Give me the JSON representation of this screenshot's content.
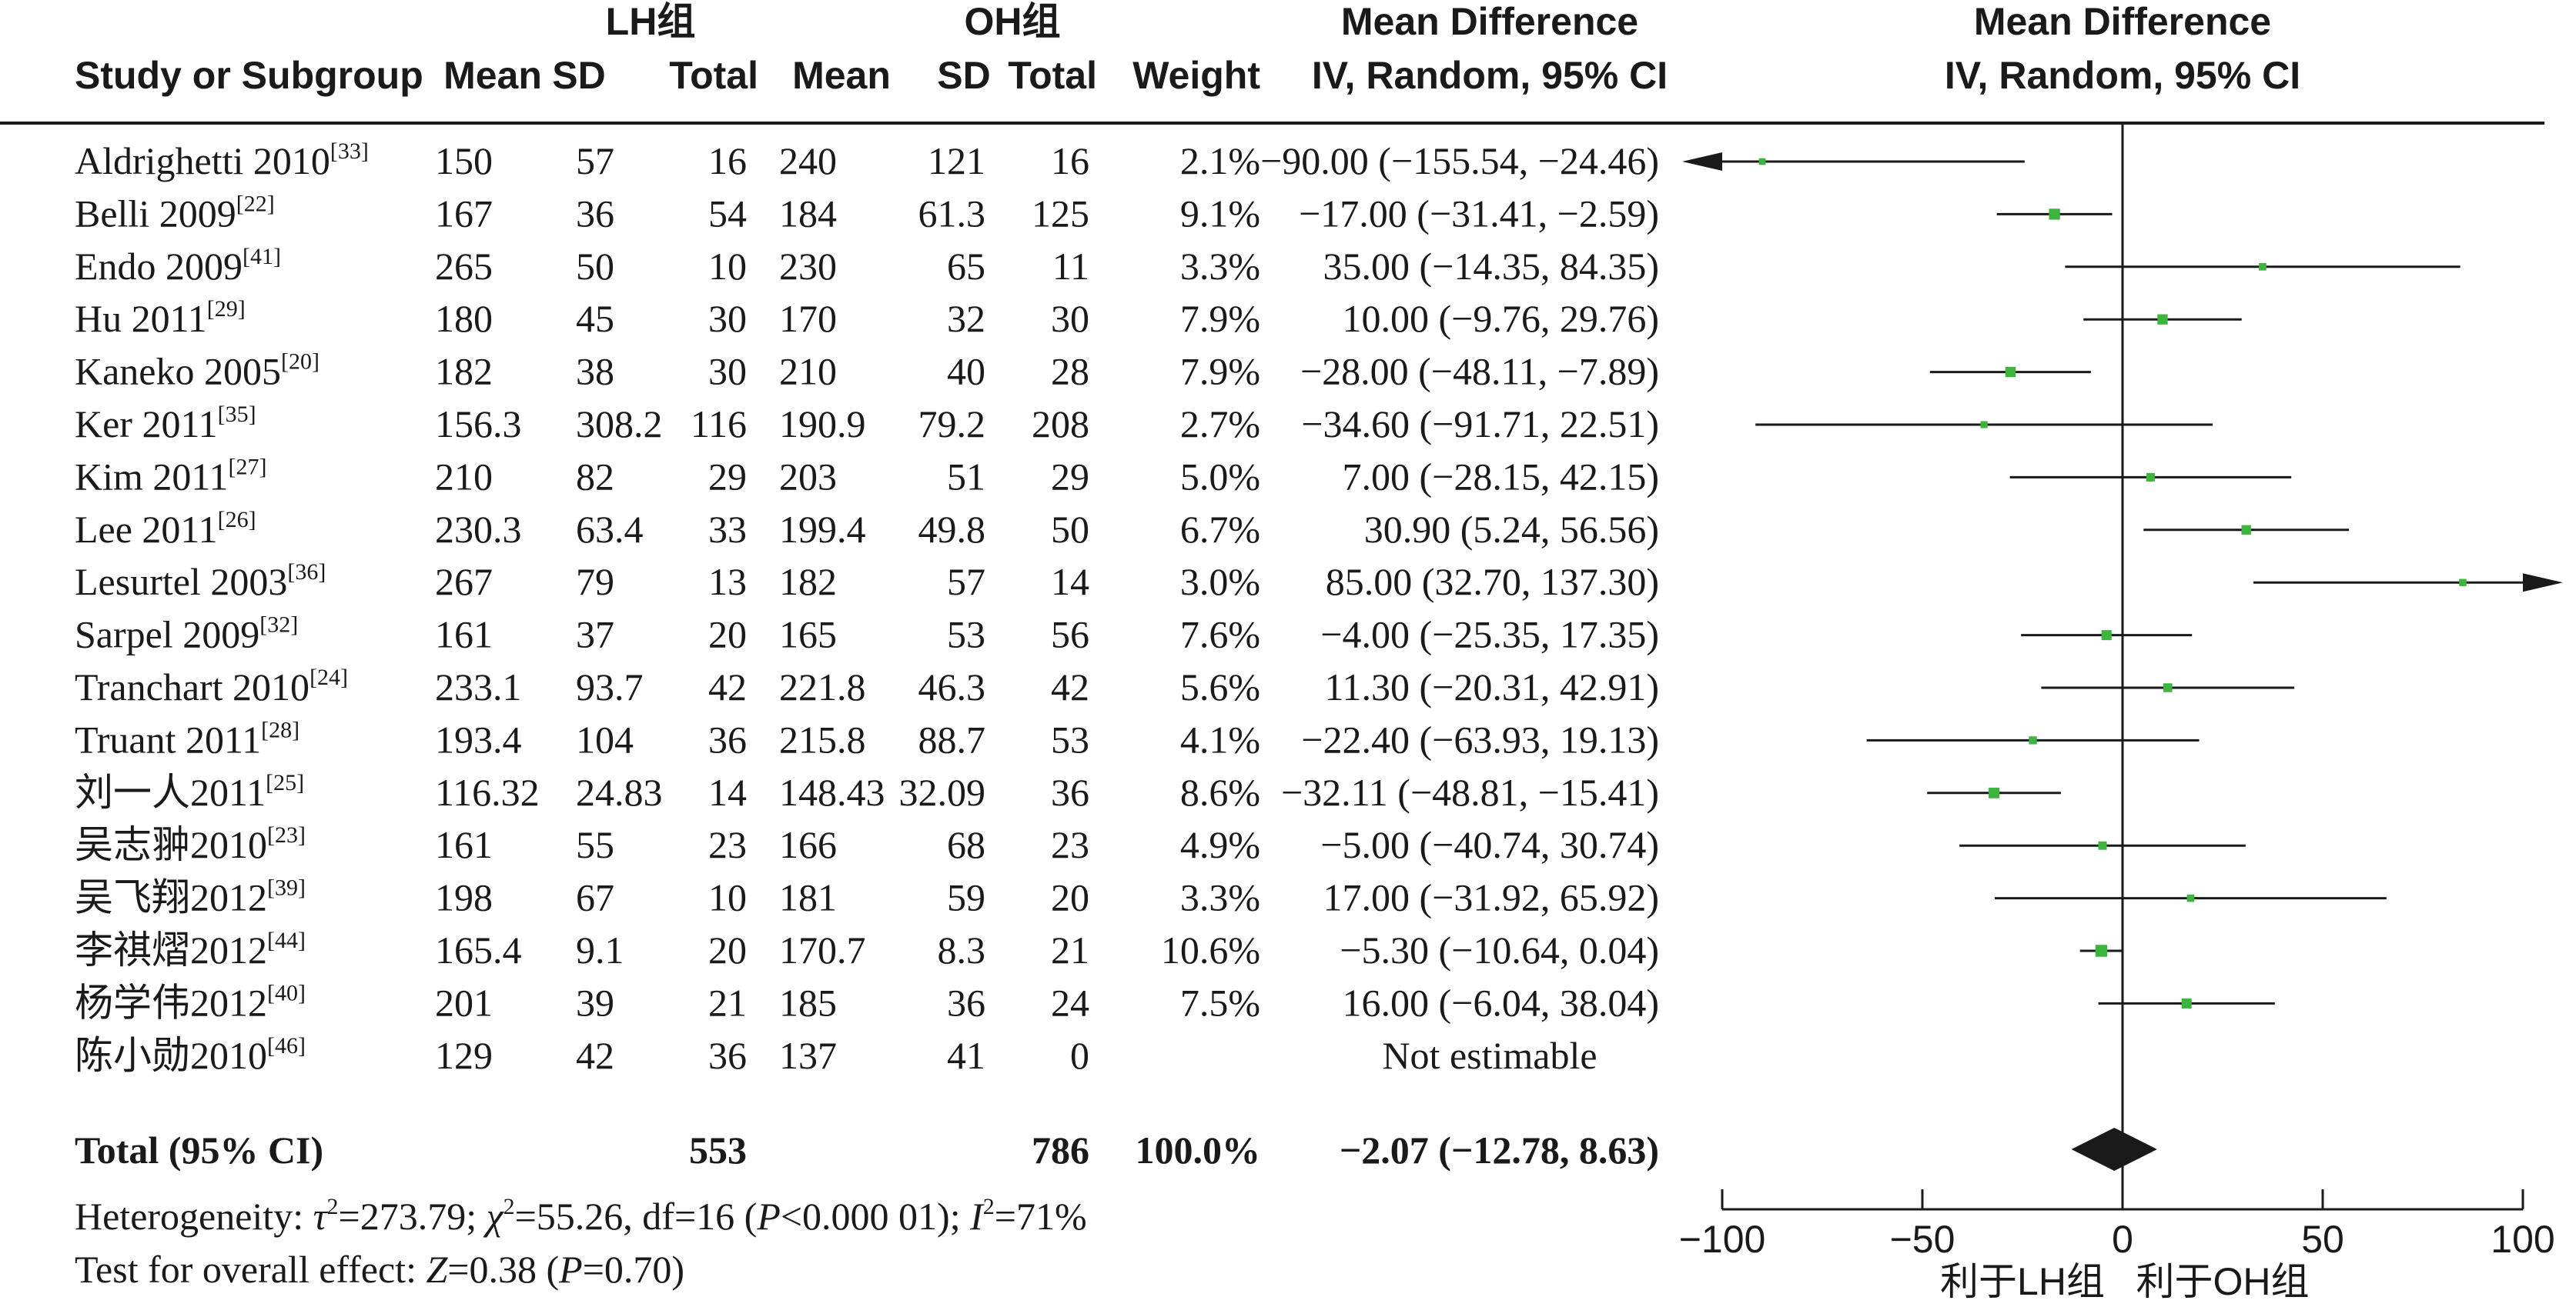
{
  "chart_data": {
    "type": "forest",
    "group_labels": {
      "experimental": "LH组",
      "control": "OH组"
    },
    "header": {
      "study": "Study or Subgroup",
      "mean": "Mean",
      "sd": "SD",
      "total": "Total",
      "weight": "Weight",
      "effect_title": "Mean Difference",
      "effect_method": "IV, Random, 95% CI"
    },
    "studies": [
      {
        "name": "Aldrighetti 2010",
        "ref": "[33]",
        "lh_mean": "150",
        "lh_sd": "57",
        "lh_total": "16",
        "oh_mean": "240",
        "oh_sd": "121",
        "oh_total": "16",
        "weight": "2.1%",
        "ci_text": "−90.00 (−155.54, −24.46)",
        "md": -90.0,
        "lower": -155.54,
        "upper": -24.46
      },
      {
        "name": "Belli 2009",
        "ref": "[22]",
        "lh_mean": "167",
        "lh_sd": "36",
        "lh_total": "54",
        "oh_mean": "184",
        "oh_sd": "61.3",
        "oh_total": "125",
        "weight": "9.1%",
        "ci_text": "−17.00 (−31.41, −2.59)",
        "md": -17.0,
        "lower": -31.41,
        "upper": -2.59
      },
      {
        "name": "Endo 2009",
        "ref": "[41]",
        "lh_mean": "265",
        "lh_sd": "50",
        "lh_total": "10",
        "oh_mean": "230",
        "oh_sd": "65",
        "oh_total": "11",
        "weight": "3.3%",
        "ci_text": "35.00 (−14.35, 84.35)",
        "md": 35.0,
        "lower": -14.35,
        "upper": 84.35
      },
      {
        "name": "Hu 2011",
        "ref": "[29]",
        "lh_mean": "180",
        "lh_sd": "45",
        "lh_total": "30",
        "oh_mean": "170",
        "oh_sd": "32",
        "oh_total": "30",
        "weight": "7.9%",
        "ci_text": "10.00 (−9.76, 29.76)",
        "md": 10.0,
        "lower": -9.76,
        "upper": 29.76
      },
      {
        "name": "Kaneko 2005",
        "ref": "[20]",
        "lh_mean": "182",
        "lh_sd": "38",
        "lh_total": "30",
        "oh_mean": "210",
        "oh_sd": "40",
        "oh_total": "28",
        "weight": "7.9%",
        "ci_text": "−28.00 (−48.11, −7.89)",
        "md": -28.0,
        "lower": -48.11,
        "upper": -7.89
      },
      {
        "name": "Ker 2011",
        "ref": "[35]",
        "lh_mean": "156.3",
        "lh_sd": "308.2",
        "lh_total": "116",
        "oh_mean": "190.9",
        "oh_sd": "79.2",
        "oh_total": "208",
        "weight": "2.7%",
        "ci_text": "−34.60 (−91.71, 22.51)",
        "md": -34.6,
        "lower": -91.71,
        "upper": 22.51
      },
      {
        "name": "Kim 2011",
        "ref": "[27]",
        "lh_mean": "210",
        "lh_sd": "82",
        "lh_total": "29",
        "oh_mean": "203",
        "oh_sd": "51",
        "oh_total": "29",
        "weight": "5.0%",
        "ci_text": "7.00 (−28.15, 42.15)",
        "md": 7.0,
        "lower": -28.15,
        "upper": 42.15
      },
      {
        "name": "Lee 2011",
        "ref": "[26]",
        "lh_mean": "230.3",
        "lh_sd": "63.4",
        "lh_total": "33",
        "oh_mean": "199.4",
        "oh_sd": "49.8",
        "oh_total": "50",
        "weight": "6.7%",
        "ci_text": "30.90 (5.24, 56.56)",
        "md": 30.9,
        "lower": 5.24,
        "upper": 56.56
      },
      {
        "name": "Lesurtel 2003",
        "ref": "[36]",
        "lh_mean": "267",
        "lh_sd": "79",
        "lh_total": "13",
        "oh_mean": "182",
        "oh_sd": "57",
        "oh_total": "14",
        "weight": "3.0%",
        "ci_text": "85.00 (32.70, 137.30)",
        "md": 85.0,
        "lower": 32.7,
        "upper": 137.3
      },
      {
        "name": "Sarpel 2009",
        "ref": "[32]",
        "lh_mean": "161",
        "lh_sd": "37",
        "lh_total": "20",
        "oh_mean": "165",
        "oh_sd": "53",
        "oh_total": "56",
        "weight": "7.6%",
        "ci_text": "−4.00 (−25.35, 17.35)",
        "md": -4.0,
        "lower": -25.35,
        "upper": 17.35
      },
      {
        "name": "Tranchart 2010",
        "ref": "[24]",
        "lh_mean": "233.1",
        "lh_sd": "93.7",
        "lh_total": "42",
        "oh_mean": "221.8",
        "oh_sd": "46.3",
        "oh_total": "42",
        "weight": "5.6%",
        "ci_text": "11.30 (−20.31, 42.91)",
        "md": 11.3,
        "lower": -20.31,
        "upper": 42.91
      },
      {
        "name": "Truant 2011",
        "ref": "[28]",
        "lh_mean": "193.4",
        "lh_sd": "104",
        "lh_total": "36",
        "oh_mean": "215.8",
        "oh_sd": "88.7",
        "oh_total": "53",
        "weight": "4.1%",
        "ci_text": "−22.40 (−63.93, 19.13)",
        "md": -22.4,
        "lower": -63.93,
        "upper": 19.13
      },
      {
        "name": "刘一人2011",
        "ref": "[25]",
        "lh_mean": "116.32",
        "lh_sd": "24.83",
        "lh_total": "14",
        "oh_mean": "148.43",
        "oh_sd": "32.09",
        "oh_total": "36",
        "weight": "8.6%",
        "ci_text": "−32.11 (−48.81, −15.41)",
        "md": -32.11,
        "lower": -48.81,
        "upper": -15.41
      },
      {
        "name": "吴志翀2010",
        "ref": "[23]",
        "lh_mean": "161",
        "lh_sd": "55",
        "lh_total": "23",
        "oh_mean": "166",
        "oh_sd": "68",
        "oh_total": "23",
        "weight": "4.9%",
        "ci_text": "−5.00 (−40.74, 30.74)",
        "md": -5.0,
        "lower": -40.74,
        "upper": 30.74
      },
      {
        "name": "吴飞翔2012",
        "ref": "[39]",
        "lh_mean": "198",
        "lh_sd": "67",
        "lh_total": "10",
        "oh_mean": "181",
        "oh_sd": "59",
        "oh_total": "20",
        "weight": "3.3%",
        "ci_text": "17.00 (−31.92, 65.92)",
        "md": 17.0,
        "lower": -31.92,
        "upper": 65.92
      },
      {
        "name": "李祺熠2012",
        "ref": "[44]",
        "lh_mean": "165.4",
        "lh_sd": "9.1",
        "lh_total": "20",
        "oh_mean": "170.7",
        "oh_sd": "8.3",
        "oh_total": "21",
        "weight": "10.6%",
        "ci_text": "−5.30 (−10.64, 0.04)",
        "md": -5.3,
        "lower": -10.64,
        "upper": 0.04
      },
      {
        "name": "杨学伟2012",
        "ref": "[40]",
        "lh_mean": "201",
        "lh_sd": "39",
        "lh_total": "21",
        "oh_mean": "185",
        "oh_sd": "36",
        "oh_total": "24",
        "weight": "7.5%",
        "ci_text": "16.00 (−6.04, 38.04)",
        "md": 16.0,
        "lower": -6.04,
        "upper": 38.04
      },
      {
        "name": "陈小勋2010",
        "ref": "[46]",
        "lh_mean": "129",
        "lh_sd": "42",
        "lh_total": "36",
        "oh_mean": "137",
        "oh_sd": "41",
        "oh_total": "0",
        "weight": "",
        "ci_text": "Not estimable",
        "md": null,
        "lower": null,
        "upper": null
      }
    ],
    "total": {
      "label": "Total (95% CI)",
      "lh_total": "553",
      "oh_total": "786",
      "weight": "100.0%",
      "ci_text": "−2.07 (−12.78, 8.63)",
      "md": -2.07,
      "lower": -12.78,
      "upper": 8.63
    },
    "heterogeneity": {
      "prefix": "Heterogeneity: ",
      "tau_symbol": "τ",
      "tau_value": "=273.79; ",
      "chi_symbol": "χ",
      "chi_value": "=55.26, df=16 (",
      "p_symbol": "P",
      "p_value": "<0.000 01); ",
      "i_symbol": "I",
      "i_value": "=71%",
      "squared": "2"
    },
    "overall_effect": {
      "prefix": "Test for overall effect: ",
      "z_symbol": "Z",
      "z_value": "=0.38 (",
      "p_symbol": "P",
      "p_value": "=0.70)"
    },
    "axis": {
      "xlim": [
        -100,
        100
      ],
      "ticks": [
        -100,
        -50,
        0,
        50,
        100
      ],
      "tick_labels": [
        "−100",
        "−50",
        "0",
        "50",
        "100"
      ],
      "favours_left": "利于LH组",
      "favours_right": "利于OH组"
    },
    "colors": {
      "point": "#3cb53c",
      "line": "#1a1a1a",
      "diamond": "#1a1a1a"
    }
  }
}
